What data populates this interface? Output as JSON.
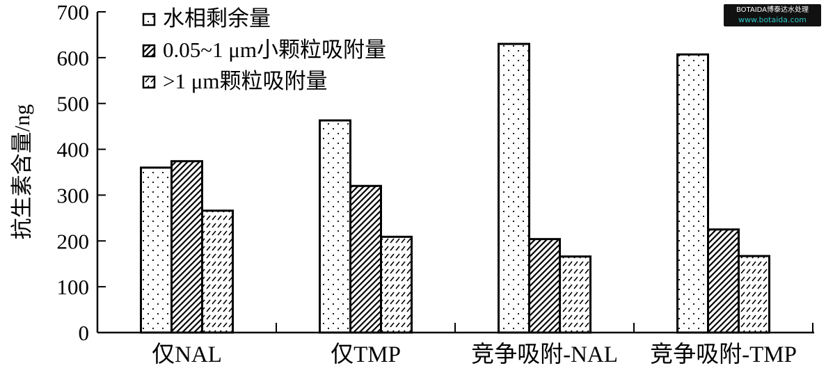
{
  "chart_data": {
    "type": "bar",
    "title": "",
    "xlabel": "",
    "ylabel": "抗生素含量/ng",
    "ylim": [
      0,
      700
    ],
    "yticks": [
      "0",
      "100",
      "200",
      "300",
      "400",
      "500",
      "600",
      "700"
    ],
    "categories": [
      "仅NAL",
      "仅TMP",
      "竞争吸附-NAL",
      "竞争吸附-TMP"
    ],
    "series": [
      {
        "name": "水相剩余量",
        "pattern": "dots",
        "values": [
          360,
          463,
          630,
          607
        ]
      },
      {
        "name": "0.05~1 μm小颗粒吸附量",
        "pattern": "dense-diagonal-hatch",
        "values": [
          374,
          320,
          204,
          225
        ]
      },
      {
        "name": ">1 μm颗粒吸附量",
        "pattern": "dashed-diagonal",
        "values": [
          266,
          209,
          166,
          167
        ]
      }
    ],
    "legend_position": "top-left",
    "grid": false,
    "colors": {
      "stroke": "#000000",
      "fill": "#ffffff"
    }
  },
  "watermark": {
    "line1": "BOTAIDA博泰达水处理",
    "line2": "www.botaida.com"
  }
}
